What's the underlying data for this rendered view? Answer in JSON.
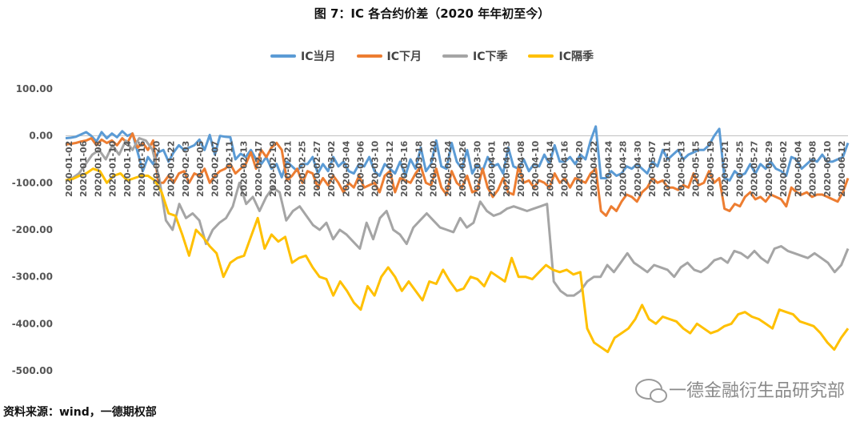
{
  "title": "图 7：IC 各合约价差（2020 年年初至今）",
  "source": "资料来源：wind，一德期权部",
  "watermark": "一德金融衍生品研究部",
  "chart_data": {
    "type": "line",
    "ylim": [
      -500,
      100
    ],
    "yticks": [
      "100.00",
      "0.00",
      "-100.00",
      "-200.00",
      "-300.00",
      "-400.00",
      "-500.00"
    ],
    "xtick_labels": [
      "2020-01-02",
      "2020-01-06",
      "2020-01-08",
      "2020-01-10",
      "2020-01-14",
      "2020-01-16",
      "2020-01-20",
      "2020-01-22",
      "2020-02-03",
      "2020-02-05",
      "2020-02-07",
      "2020-02-11",
      "2020-02-13",
      "2020-02-17",
      "2020-02-19",
      "2020-02-21",
      "2020-02-25",
      "2020-02-27",
      "2020-03-02",
      "2020-03-04",
      "2020-03-06",
      "2020-03-10",
      "2020-03-12",
      "2020-03-16",
      "2020-03-18",
      "2020-03-20",
      "2020-03-24",
      "2020-03-26",
      "2020-03-30",
      "2020-04-01",
      "2020-04-03",
      "2020-04-08",
      "2020-04-10",
      "2020-04-14",
      "2020-04-16",
      "2020-04-20",
      "2020-04-22",
      "2020-04-24",
      "2020-04-28",
      "2020-04-30",
      "2020-05-07",
      "2020-05-11",
      "2020-05-13",
      "2020-05-15",
      "2020-05-19",
      "2020-05-21",
      "2020-05-25",
      "2020-05-27",
      "2020-05-29",
      "2020-06-02",
      "2020-06-04",
      "2020-06-08",
      "2020-06-10",
      "2020-06-12"
    ],
    "series": [
      {
        "name": "IC当月",
        "color": "#5b9bd5",
        "values": [
          -5,
          -4,
          -2,
          3,
          8,
          0,
          -12,
          8,
          -5,
          5,
          -3,
          10,
          0,
          5,
          -35,
          -75,
          -45,
          -60,
          -35,
          -30,
          -55,
          -35,
          -20,
          -30,
          -25,
          -20,
          -8,
          -30,
          2,
          -40,
          0,
          -2,
          -3,
          -50,
          -38,
          -45,
          -30,
          -50,
          -60,
          -45,
          -70,
          -60,
          -88,
          -55,
          -65,
          -75,
          -60,
          -60,
          -45,
          -80,
          -60,
          -75,
          -45,
          -65,
          -55,
          -75,
          -80,
          -60,
          -65,
          -45,
          -75,
          -85,
          -60,
          -70,
          -80,
          -55,
          -85,
          -50,
          -70,
          -25,
          -75,
          -60,
          -10,
          -65,
          -70,
          -15,
          -55,
          -70,
          -30,
          -80,
          -60,
          -75,
          -45,
          -65,
          -60,
          -80,
          -25,
          -65,
          -70,
          -50,
          -75,
          -60,
          -65,
          -40,
          -60,
          -20,
          -55,
          -55,
          -45,
          -60,
          -40,
          -50,
          -10,
          20,
          -90,
          -90,
          -75,
          -85,
          -80,
          -65,
          -70,
          -60,
          -70,
          -80,
          -55,
          -65,
          -30,
          -50,
          -40,
          -30,
          -50,
          -40,
          -35,
          -30,
          -30,
          -20,
          0,
          15,
          -90,
          -95,
          -75,
          -85,
          -80,
          -60,
          -80,
          -60,
          -70,
          -55,
          -70,
          -75,
          -85,
          -45,
          -50,
          -70,
          -60,
          -50,
          -55,
          -40,
          -55,
          -55,
          -50,
          -45,
          -15
        ]
      },
      {
        "name": "IC下月",
        "color": "#ed7d31",
        "values": [
          -18,
          -17,
          -15,
          -12,
          -10,
          -5,
          -20,
          -8,
          -15,
          -10,
          -20,
          -5,
          -15,
          5,
          -25,
          -15,
          -30,
          -10,
          -100,
          -100,
          -85,
          -100,
          -80,
          -75,
          -100,
          -80,
          -85,
          -70,
          -100,
          -85,
          -75,
          -70,
          -60,
          -80,
          -70,
          -60,
          -35,
          -70,
          -30,
          -45,
          -25,
          -15,
          -30,
          -95,
          -85,
          -70,
          -100,
          -75,
          -80,
          -110,
          -90,
          -105,
          -85,
          -100,
          -120,
          -100,
          -110,
          -85,
          -110,
          -105,
          -100,
          -120,
          -85,
          -75,
          -120,
          -90,
          -95,
          -100,
          -80,
          -65,
          -100,
          -105,
          -70,
          -110,
          -125,
          -75,
          -100,
          -110,
          -85,
          -120,
          -115,
          -70,
          -110,
          -130,
          -115,
          -90,
          -120,
          -125,
          -65,
          -100,
          -95,
          -110,
          -95,
          -100,
          -110,
          -80,
          -100,
          -90,
          -110,
          -90,
          -95,
          -100,
          -80,
          -70,
          -160,
          -170,
          -150,
          -160,
          -140,
          -125,
          -130,
          -140,
          -120,
          -110,
          -90,
          -100,
          -95,
          -110,
          -110,
          -115,
          -105,
          -110,
          -80,
          -105,
          -100,
          -75,
          -100,
          -90,
          -155,
          -160,
          -145,
          -150,
          -130,
          -120,
          -135,
          -130,
          -140,
          -125,
          -130,
          -135,
          -150,
          -110,
          -120,
          -125,
          -120,
          -130,
          -125,
          -125,
          -130,
          -135,
          -140,
          -120,
          -90
        ]
      },
      {
        "name": "IC下季",
        "color": "#a5a5a5",
        "values": [
          -95,
          -90,
          -80,
          -60,
          -40,
          -30,
          -50,
          -20,
          -40,
          -10,
          -30,
          -5,
          -10,
          -30,
          -90,
          -180,
          -200,
          -145,
          -175,
          -165,
          -180,
          -230,
          -200,
          -185,
          -175,
          -150,
          -100,
          -145,
          -130,
          -160,
          -130,
          -110,
          -120,
          -180,
          -160,
          -150,
          -170,
          -190,
          -200,
          -185,
          -220,
          -200,
          -210,
          -225,
          -240,
          -185,
          -220,
          -175,
          -160,
          -200,
          -210,
          -230,
          -195,
          -180,
          -165,
          -180,
          -195,
          -200,
          -205,
          -175,
          -195,
          -185,
          -140,
          -160,
          -170,
          -165,
          -155,
          -150,
          -155,
          -160,
          -155,
          -150,
          -145,
          -310,
          -330,
          -340,
          -340,
          -330,
          -310,
          -300,
          -300,
          -275,
          -290,
          -270,
          -250,
          -270,
          -280,
          -290,
          -275,
          -280,
          -285,
          -300,
          -280,
          -270,
          -285,
          -290,
          -280,
          -265,
          -260,
          -270,
          -245,
          -250,
          -260,
          -245,
          -260,
          -270,
          -240,
          -235,
          -245,
          -250,
          -255,
          -260,
          -250,
          -260,
          -270,
          -290,
          -275,
          -240
        ]
      },
      {
        "name": "IC隔季",
        "color": "#ffc000",
        "values": [
          -95,
          -92,
          -85,
          -80,
          -70,
          -75,
          -100,
          -85,
          -80,
          -95,
          -90,
          -85,
          -85,
          -95,
          -120,
          -165,
          -170,
          -210,
          -255,
          -200,
          -215,
          -235,
          -250,
          -300,
          -270,
          -260,
          -255,
          -215,
          -175,
          -240,
          -210,
          -225,
          -215,
          -270,
          -260,
          -255,
          -280,
          -300,
          -305,
          -340,
          -310,
          -330,
          -355,
          -370,
          -320,
          -340,
          -300,
          -280,
          -300,
          -330,
          -310,
          -330,
          -350,
          -310,
          -315,
          -285,
          -310,
          -330,
          -325,
          -300,
          -305,
          -320,
          -290,
          -300,
          -310,
          -260,
          -300,
          -300,
          -305,
          -290,
          -275,
          -285,
          -290,
          -285,
          -295,
          -290,
          -410,
          -440,
          -450,
          -460,
          -430,
          -420,
          -410,
          -390,
          -360,
          -390,
          -400,
          -385,
          -390,
          -395,
          -410,
          -420,
          -400,
          -410,
          -420,
          -415,
          -405,
          -400,
          -380,
          -375,
          -385,
          -390,
          -400,
          -410,
          -370,
          -375,
          -380,
          -395,
          -400,
          -405,
          -420,
          -440,
          -455,
          -430,
          -410
        ]
      }
    ]
  }
}
